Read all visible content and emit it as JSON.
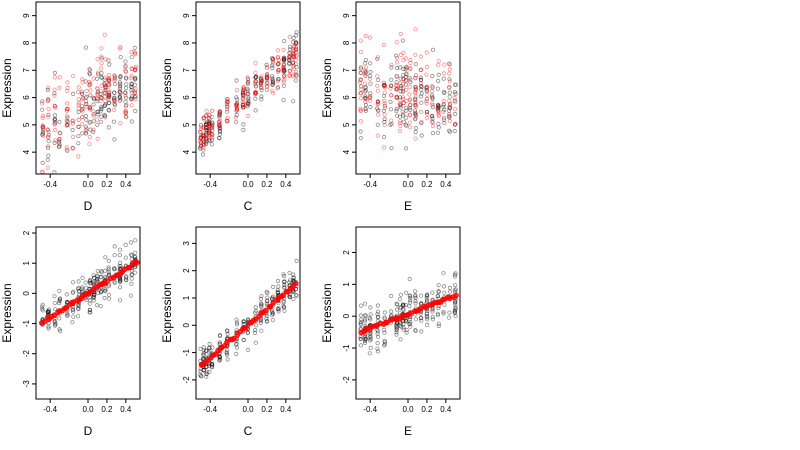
{
  "colors": {
    "background": "#ffffff",
    "black_points": "#000000",
    "red_points": "#ff0000"
  },
  "chart_data": [
    {
      "type": "scatter",
      "row": 1,
      "col": 1,
      "xlabel": "D",
      "ylabel": "Expression",
      "xlim": [
        -0.55,
        0.55
      ],
      "ylim": [
        3.2,
        9.5
      ],
      "xticks": [
        -0.4,
        0.0,
        0.2,
        0.4
      ],
      "xtick_labels": [
        "-0.4",
        "0.0",
        "0.2",
        "0.4"
      ],
      "yticks": [
        4,
        5,
        6,
        7,
        8,
        9
      ],
      "ytick_labels": [
        "4",
        "5",
        "6",
        "7",
        "8",
        "9"
      ],
      "x_groups": [
        -0.48,
        -0.42,
        -0.35,
        -0.3,
        -0.22,
        -0.16,
        -0.1,
        -0.06,
        -0.02,
        0.02,
        0.06,
        0.1,
        0.14,
        0.18,
        0.22,
        0.28,
        0.34,
        0.4,
        0.46,
        0.5
      ],
      "series": [
        {
          "color": "black",
          "trend": [
            [
              -0.5,
              4.6
            ],
            [
              0.5,
              6.6
            ]
          ],
          "spread": 1.25,
          "n": 190
        },
        {
          "color": "red",
          "trend": [
            [
              -0.5,
              4.9
            ],
            [
              0.5,
              6.8
            ]
          ],
          "spread": 1.25,
          "n": 170
        }
      ]
    },
    {
      "type": "scatter",
      "row": 1,
      "col": 2,
      "xlabel": "C",
      "ylabel": "Expression",
      "xlim": [
        -0.55,
        0.55
      ],
      "ylim": [
        3.2,
        9.5
      ],
      "xticks": [
        -0.4,
        0.0,
        0.2,
        0.4
      ],
      "xtick_labels": [
        "-0.4",
        "0.0",
        "0.2",
        "0.4"
      ],
      "yticks": [
        4,
        5,
        6,
        7,
        8,
        9
      ],
      "ytick_labels": [
        "4",
        "5",
        "6",
        "7",
        "8",
        "9"
      ],
      "x_groups": [
        -0.5,
        -0.47,
        -0.44,
        -0.41,
        -0.38,
        -0.3,
        -0.22,
        -0.12,
        -0.05,
        0.0,
        0.08,
        0.14,
        0.2,
        0.26,
        0.32,
        0.38,
        0.44,
        0.48,
        0.51
      ],
      "series": [
        {
          "color": "black",
          "trend": [
            [
              -0.5,
              4.5
            ],
            [
              0.5,
              7.6
            ]
          ],
          "spread": 0.75,
          "n": 200
        },
        {
          "color": "red",
          "trend": [
            [
              -0.5,
              4.6
            ],
            [
              0.5,
              7.6
            ]
          ],
          "spread": 0.6,
          "n": 180
        }
      ]
    },
    {
      "type": "scatter",
      "row": 1,
      "col": 3,
      "xlabel": "E",
      "ylabel": "Expression",
      "xlim": [
        -0.55,
        0.55
      ],
      "ylim": [
        3.2,
        9.5
      ],
      "xticks": [
        -0.4,
        0.0,
        0.2,
        0.4
      ],
      "xtick_labels": [
        "-0.4",
        "0.0",
        "0.2",
        "0.4"
      ],
      "yticks": [
        4,
        5,
        6,
        7,
        8,
        9
      ],
      "ytick_labels": [
        "4",
        "5",
        "6",
        "7",
        "8",
        "9"
      ],
      "x_groups": [
        -0.5,
        -0.45,
        -0.4,
        -0.32,
        -0.25,
        -0.18,
        -0.12,
        -0.08,
        -0.05,
        -0.02,
        0.02,
        0.08,
        0.14,
        0.2,
        0.26,
        0.32,
        0.38,
        0.44,
        0.5
      ],
      "series": [
        {
          "color": "black",
          "trend": [
            [
              -0.5,
              6.2
            ],
            [
              0.5,
              5.8
            ]
          ],
          "spread": 1.3,
          "n": 190
        },
        {
          "color": "red",
          "trend": [
            [
              -0.5,
              6.4
            ],
            [
              0.5,
              6.0
            ]
          ],
          "spread": 1.4,
          "n": 170
        }
      ]
    },
    {
      "type": "scatter",
      "row": 2,
      "col": 1,
      "xlabel": "D",
      "ylabel": "Expression",
      "xlim": [
        -0.55,
        0.55
      ],
      "ylim": [
        -3.5,
        2.2
      ],
      "xticks": [
        -0.4,
        0.0,
        0.2,
        0.4
      ],
      "xtick_labels": [
        "-0.4",
        "0.0",
        "0.2",
        "0.4"
      ],
      "yticks": [
        -3,
        -2,
        -1,
        0,
        1,
        2
      ],
      "ytick_labels": [
        "-3",
        "-2",
        "-1",
        "0",
        "1",
        "2"
      ],
      "x_groups": [
        -0.48,
        -0.42,
        -0.35,
        -0.3,
        -0.22,
        -0.16,
        -0.1,
        -0.06,
        -0.02,
        0.02,
        0.06,
        0.1,
        0.14,
        0.18,
        0.22,
        0.28,
        0.34,
        0.4,
        0.46,
        0.5
      ],
      "series": [
        {
          "color": "black",
          "trend": [
            [
              -0.5,
              -0.95
            ],
            [
              0.52,
              1.1
            ]
          ],
          "spread": 0.6,
          "n": 260
        },
        {
          "color": "red",
          "fitted": true,
          "trend": [
            [
              -0.48,
              -0.95
            ],
            [
              0.52,
              1.05
            ]
          ],
          "n": 40
        }
      ]
    },
    {
      "type": "scatter",
      "row": 2,
      "col": 2,
      "xlabel": "C",
      "ylabel": "Expression",
      "xlim": [
        -0.55,
        0.55
      ],
      "ylim": [
        -2.7,
        3.6
      ],
      "xticks": [
        -0.4,
        0.0,
        0.2,
        0.4
      ],
      "xtick_labels": [
        "-0.4",
        "0.0",
        "0.2",
        "0.4"
      ],
      "yticks": [
        -2,
        -1,
        0,
        1,
        2,
        3
      ],
      "ytick_labels": [
        "-2",
        "-1",
        "0",
        "1",
        "2",
        "3"
      ],
      "x_groups": [
        -0.5,
        -0.47,
        -0.44,
        -0.41,
        -0.38,
        -0.3,
        -0.22,
        -0.12,
        -0.05,
        0.0,
        0.08,
        0.14,
        0.2,
        0.26,
        0.32,
        0.38,
        0.44,
        0.48,
        0.51
      ],
      "series": [
        {
          "color": "black",
          "trend": [
            [
              -0.5,
              -1.5
            ],
            [
              0.5,
              1.5
            ]
          ],
          "spread": 0.55,
          "n": 260
        },
        {
          "color": "red",
          "fitted": true,
          "trend": [
            [
              -0.5,
              -1.5
            ],
            [
              0.5,
              1.5
            ]
          ],
          "n": 40
        }
      ]
    },
    {
      "type": "scatter",
      "row": 2,
      "col": 3,
      "xlabel": "E",
      "ylabel": "Expression",
      "xlim": [
        -0.55,
        0.55
      ],
      "ylim": [
        -2.6,
        2.8
      ],
      "xticks": [
        -0.4,
        0.0,
        0.2,
        0.4
      ],
      "xtick_labels": [
        "-0.4",
        "0.0",
        "0.2",
        "0.4"
      ],
      "yticks": [
        -2,
        -1,
        0,
        1,
        2
      ],
      "ytick_labels": [
        "-2",
        "-1",
        "0",
        "1",
        "2"
      ],
      "x_groups": [
        -0.5,
        -0.45,
        -0.4,
        -0.32,
        -0.25,
        -0.18,
        -0.12,
        -0.08,
        -0.05,
        -0.02,
        0.02,
        0.08,
        0.14,
        0.2,
        0.26,
        0.32,
        0.38,
        0.44,
        0.5
      ],
      "series": [
        {
          "color": "black",
          "trend": [
            [
              -0.5,
              -0.5
            ],
            [
              0.5,
              0.6
            ]
          ],
          "spread": 0.6,
          "n": 260
        },
        {
          "color": "red",
          "fitted": true,
          "trend": [
            [
              -0.5,
              -0.5
            ],
            [
              0.5,
              0.65
            ]
          ],
          "n": 40
        }
      ]
    }
  ]
}
